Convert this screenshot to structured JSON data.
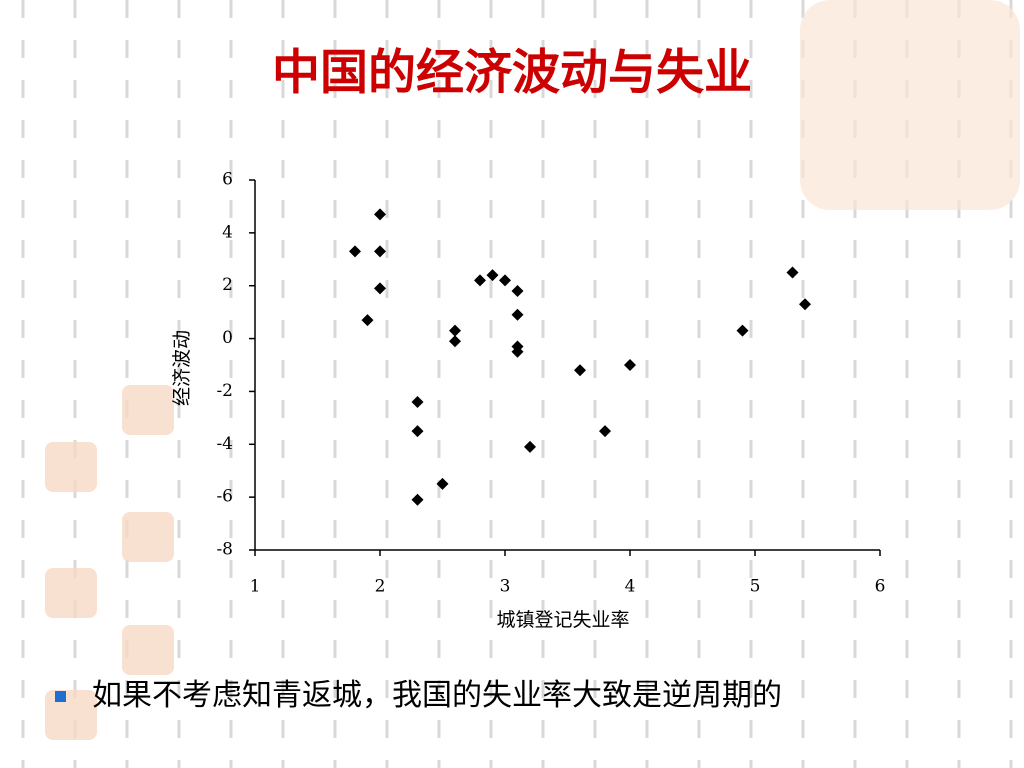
{
  "chart_data": {
    "type": "scatter",
    "title": "中国的经济波动与失业",
    "x_label": "城镇登记失业率",
    "y_label": "经济波动",
    "x": [
      1.8,
      2.0,
      2.0,
      2.0,
      1.9,
      2.3,
      2.3,
      2.3,
      2.5,
      2.6,
      2.6,
      2.8,
      2.9,
      3.0,
      3.1,
      3.1,
      3.1,
      3.1,
      3.2,
      3.6,
      3.8,
      4.0,
      4.9,
      5.3,
      5.4
    ],
    "values": [
      3.3,
      4.7,
      3.3,
      1.9,
      0.7,
      -2.4,
      -3.5,
      -6.1,
      -5.5,
      0.3,
      -0.1,
      2.2,
      2.4,
      2.2,
      1.8,
      0.9,
      -0.3,
      -0.5,
      -4.1,
      -1.2,
      -3.5,
      -1.0,
      0.3,
      2.5,
      1.3
    ],
    "color": "#000000",
    "xlim": [
      1,
      6
    ],
    "xticks": [
      1,
      2,
      3,
      4,
      5,
      6
    ],
    "ylim": [
      -8,
      6
    ],
    "yticks": [
      -8,
      -6,
      -4,
      -2,
      0,
      2,
      4,
      6
    ]
  },
  "bullet": "如果不考虑知青返城，我国的失业率大致是逆周期的"
}
